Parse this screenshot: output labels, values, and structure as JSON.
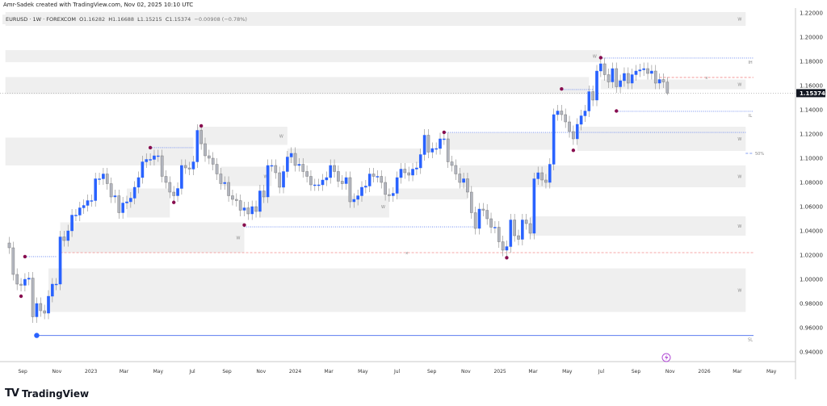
{
  "attribution": "Amr-Sadek created with TradingView.com, Nov 02, 2025 10:10 UTC",
  "legend": {
    "symbol": "EURUSD · 1W · FOREXCOM",
    "open_label": "O",
    "open": "1.16282",
    "high_label": "H",
    "high": "1.16688",
    "low_label": "L",
    "low": "1.15215",
    "close_label": "C",
    "close": "1.15374",
    "change": "−0.00908 (−0.78%)"
  },
  "brand": "TradingView",
  "colors": {
    "up": "#2962ff",
    "down": "#b2b5be",
    "zone": "#ececec",
    "pivot": "#880e4f",
    "level_blue": "#5b7cf0",
    "level_red": "#f28b8b",
    "last_price_bg": "#131722"
  },
  "chart_data": {
    "type": "candlestick",
    "symbol": "EURUSD",
    "interval": "1W",
    "first_week": "2022-08-08",
    "closes": [
      1.026,
      1.004,
      0.996,
      0.995,
      1.0,
      1.001,
      0.969,
      0.98,
      0.974,
      0.972,
      0.986,
      0.996,
      0.996,
      1.035,
      1.032,
      1.04,
      1.053,
      1.053,
      1.059,
      1.061,
      1.065,
      1.065,
      1.083,
      1.083,
      1.087,
      1.079,
      1.068,
      1.069,
      1.055,
      1.063,
      1.064,
      1.067,
      1.076,
      1.084,
      1.097,
      1.099,
      1.099,
      1.102,
      1.102,
      1.085,
      1.08,
      1.072,
      1.069,
      1.075,
      1.094,
      1.092,
      1.091,
      1.097,
      1.123,
      1.112,
      1.102,
      1.1,
      1.095,
      1.087,
      1.079,
      1.08,
      1.069,
      1.066,
      1.065,
      1.057,
      1.059,
      1.054,
      1.06,
      1.056,
      1.073,
      1.068,
      1.094,
      1.094,
      1.088,
      1.076,
      1.089,
      1.101,
      1.104,
      1.094,
      1.095,
      1.089,
      1.085,
      1.078,
      1.078,
      1.078,
      1.082,
      1.084,
      1.094,
      1.089,
      1.081,
      1.079,
      1.084,
      1.064,
      1.066,
      1.069,
      1.076,
      1.077,
      1.087,
      1.085,
      1.085,
      1.08,
      1.07,
      1.069,
      1.071,
      1.084,
      1.091,
      1.088,
      1.086,
      1.091,
      1.092,
      1.103,
      1.119,
      1.105,
      1.108,
      1.108,
      1.116,
      1.116,
      1.097,
      1.094,
      1.087,
      1.08,
      1.083,
      1.072,
      1.055,
      1.042,
      1.058,
      1.057,
      1.05,
      1.043,
      1.043,
      1.031,
      1.024,
      1.027,
      1.049,
      1.036,
      1.033,
      1.049,
      1.046,
      1.038,
      1.083,
      1.088,
      1.082,
      1.08,
      1.095,
      1.136,
      1.139,
      1.136,
      1.13,
      1.122,
      1.116,
      1.128,
      1.135,
      1.139,
      1.155,
      1.148,
      1.172,
      1.178,
      1.169,
      1.163,
      1.174,
      1.159,
      1.164,
      1.17,
      1.162,
      1.169,
      1.172,
      1.173,
      1.174,
      1.17,
      1.172,
      1.162,
      1.165,
      1.163,
      1.15374
    ],
    "last_candle": {
      "open": 1.16282,
      "high": 1.16688,
      "low": 1.15215,
      "close": 1.15374
    },
    "last_price": "1.15374",
    "y_ticks": [
      "1.22000",
      "1.20000",
      "1.18000",
      "1.16000",
      "1.14000",
      "1.12000",
      "1.10000",
      "1.08000",
      "1.06000",
      "1.04000",
      "1.02000",
      "1.00000",
      "0.98000",
      "0.96000",
      "0.94000"
    ],
    "ylim": [
      0.935,
      1.225
    ],
    "x_ticks": [
      {
        "date": "2022-09-01",
        "label": "Sep"
      },
      {
        "date": "2022-11-01",
        "label": "Nov"
      },
      {
        "date": "2023-01-01",
        "label": "2023"
      },
      {
        "date": "2023-03-01",
        "label": "Mar"
      },
      {
        "date": "2023-05-01",
        "label": "May"
      },
      {
        "date": "2023-07-01",
        "label": "Jul"
      },
      {
        "date": "2023-09-01",
        "label": "Sep"
      },
      {
        "date": "2023-11-01",
        "label": "Nov"
      },
      {
        "date": "2024-01-01",
        "label": "2024"
      },
      {
        "date": "2024-03-01",
        "label": "Mar"
      },
      {
        "date": "2024-05-01",
        "label": "May"
      },
      {
        "date": "2024-07-01",
        "label": "Jul"
      },
      {
        "date": "2024-09-01",
        "label": "Sep"
      },
      {
        "date": "2024-11-01",
        "label": "Nov"
      },
      {
        "date": "2025-01-01",
        "label": "2025"
      },
      {
        "date": "2025-03-01",
        "label": "Mar"
      },
      {
        "date": "2025-05-01",
        "label": "May"
      },
      {
        "date": "2025-07-01",
        "label": "Jul"
      },
      {
        "date": "2025-09-01",
        "label": "Sep"
      },
      {
        "date": "2025-11-01",
        "label": "Nov"
      },
      {
        "date": "2026-01-01",
        "label": "2026"
      },
      {
        "date": "2026-03-01",
        "label": "Mar"
      },
      {
        "date": "2026-05-01",
        "label": "May"
      }
    ],
    "zones": [
      {
        "from": "2022-08-01",
        "to": "2026-03-16",
        "top": 1.2207,
        "bottom": 1.2093,
        "label": "W"
      },
      {
        "from": "2022-08-01",
        "to": "2025-06-30",
        "top": 1.1893,
        "bottom": 1.1793,
        "label": "W"
      },
      {
        "from": "2022-08-01",
        "to": "2025-06-09",
        "top": 1.167,
        "bottom": 1.153,
        "label": ""
      },
      {
        "from": "2025-06-30",
        "to": "2026-03-16",
        "top": 1.165,
        "bottom": 1.157,
        "label": "W"
      },
      {
        "from": "2022-08-01",
        "to": "2023-07-03",
        "top": 1.117,
        "bottom": 1.094,
        "label": ""
      },
      {
        "from": "2023-07-10",
        "to": "2023-12-18",
        "top": 1.126,
        "bottom": 1.111,
        "label": "W"
      },
      {
        "from": "2023-12-18",
        "to": "2024-08-12",
        "top": 1.108,
        "bottom": 1.096,
        "label": ""
      },
      {
        "from": "2023-08-21",
        "to": "2023-11-20",
        "top": 1.093,
        "bottom": 1.077,
        "label": "W"
      },
      {
        "from": "2023-03-06",
        "to": "2023-05-22",
        "top": 1.075,
        "bottom": 1.051,
        "label": ""
      },
      {
        "from": "2023-10-30",
        "to": "2024-06-17",
        "top": 1.069,
        "bottom": 1.051,
        "label": "W"
      },
      {
        "from": "2024-07-01",
        "to": "2024-11-04",
        "top": 1.075,
        "bottom": 1.066,
        "label": ""
      },
      {
        "from": "2024-09-30",
        "to": "2025-04-07",
        "top": 1.121,
        "bottom": 1.107,
        "label": ""
      },
      {
        "from": "2024-10-21",
        "to": "2026-03-16",
        "top": 1.094,
        "bottom": 1.076,
        "label": "W"
      },
      {
        "from": "2025-05-19",
        "to": "2026-03-16",
        "top": 1.126,
        "bottom": 1.106,
        "label": "W"
      },
      {
        "from": "2025-02-24",
        "to": "2026-03-16",
        "top": 1.052,
        "bottom": 1.036,
        "label": "W"
      },
      {
        "from": "2022-11-07",
        "to": "2023-10-02",
        "top": 1.047,
        "bottom": 1.022,
        "label": "W"
      },
      {
        "from": "2022-10-17",
        "to": "2026-03-16",
        "top": 1.009,
        "bottom": 0.973,
        "label": "W"
      }
    ],
    "levels": [
      {
        "from": "2022-09-26",
        "to": "2026-03-30",
        "price": 0.9536,
        "style": "solid-blue",
        "label": "SL"
      },
      {
        "from": "2025-06-30",
        "to": "2026-03-30",
        "price": 1.1827,
        "style": "dotted-blue",
        "label": "IH"
      },
      {
        "from": "2025-07-28",
        "to": "2026-03-30",
        "price": 1.1387,
        "style": "dotted-blue",
        "label": "IL"
      },
      {
        "from": "2026-03-16",
        "to": "2026-03-30",
        "price": 1.104,
        "style": "dashed-blue",
        "label": "50%"
      },
      {
        "from": "2025-10-13",
        "to": "2026-03-30",
        "price": 1.1667,
        "style": "dashed-red",
        "label": "x"
      },
      {
        "from": "2022-11-07",
        "to": "2026-03-30",
        "price": 1.022,
        "style": "dashed-red",
        "label": "x"
      },
      {
        "from": "2022-09-05",
        "to": "2022-10-31",
        "price": 1.0187,
        "style": "dotted-blue",
        "label": ""
      },
      {
        "from": "2023-04-17",
        "to": "2023-07-03",
        "price": 1.1087,
        "style": "dotted-blue",
        "label": ""
      },
      {
        "from": "2023-10-02",
        "to": "2024-11-18",
        "price": 1.0433,
        "style": "dotted-blue",
        "label": ""
      },
      {
        "from": "2024-09-23",
        "to": "2026-03-16",
        "price": 1.1213,
        "style": "dotted-blue",
        "label": ""
      },
      {
        "from": "2025-04-21",
        "to": "2025-06-16",
        "price": 1.1567,
        "style": "dotted-blue",
        "label": ""
      }
    ],
    "pivots": [
      {
        "date": "2022-09-05",
        "price": 1.0187
      },
      {
        "date": "2022-08-29",
        "price": 0.986
      },
      {
        "date": "2023-04-17",
        "price": 1.1087
      },
      {
        "date": "2023-07-17",
        "price": 1.1267
      },
      {
        "date": "2023-05-29",
        "price": 1.0635
      },
      {
        "date": "2023-10-02",
        "price": 1.0448
      },
      {
        "date": "2024-09-23",
        "price": 1.1214
      },
      {
        "date": "2025-01-13",
        "price": 1.0178
      },
      {
        "date": "2025-04-21",
        "price": 1.1572
      },
      {
        "date": "2025-05-12",
        "price": 1.1065
      },
      {
        "date": "2025-06-30",
        "price": 1.183
      },
      {
        "date": "2025-07-28",
        "price": 1.139
      }
    ],
    "swing_low_marker": {
      "date": "2022-09-26",
      "price": 0.9536
    }
  }
}
